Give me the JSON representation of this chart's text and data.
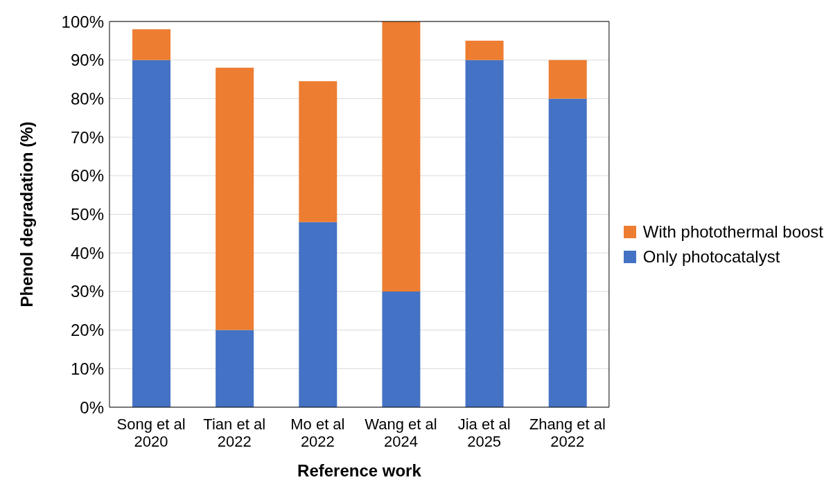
{
  "chart_data": {
    "type": "bar",
    "stacked": true,
    "xlabel": "Reference work",
    "ylabel": "Phenol degradation (%)",
    "categories": [
      "Song et al\n2020",
      "Tian et al\n2022",
      "Mo et al\n2022",
      "Wang et al\n2024",
      "Jia et al\n2025",
      "Zhang et al\n2022"
    ],
    "series": [
      {
        "name": "Only photocatalyst",
        "color": "#4472c4",
        "values": [
          90,
          20,
          48,
          30,
          90,
          80
        ]
      },
      {
        "name": "With photothermal boost",
        "color": "#ed7d31",
        "values": [
          8,
          68,
          36.5,
          70,
          5,
          10
        ]
      }
    ],
    "ylim": [
      0,
      100
    ],
    "yticks": [
      {
        "value": 0,
        "label": "0%"
      },
      {
        "value": 10,
        "label": "10%"
      },
      {
        "value": 20,
        "label": "20%"
      },
      {
        "value": 30,
        "label": "30%"
      },
      {
        "value": 40,
        "label": "40%"
      },
      {
        "value": 50,
        "label": "50%"
      },
      {
        "value": 60,
        "label": "60%"
      },
      {
        "value": 70,
        "label": "70%"
      },
      {
        "value": 80,
        "label": "80%"
      },
      {
        "value": 90,
        "label": "90%"
      },
      {
        "value": 100,
        "label": "100%"
      }
    ],
    "grid": "y",
    "legend": "right"
  }
}
